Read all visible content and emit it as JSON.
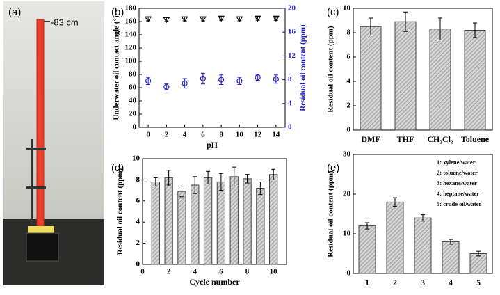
{
  "photo": {
    "panel_label": "(a)",
    "annotation": "-83 cm"
  },
  "chart_data": [
    {
      "type": "scatter",
      "panel_label": "(b)",
      "xlabel": "pH",
      "ylabel": "Underwater oil contact angle (°)",
      "y2label": "Residual oil content (ppm)",
      "y2color": "#1f1fd0",
      "x": [
        0,
        2,
        4,
        6,
        8,
        10,
        12,
        14
      ],
      "xlim": [
        -1,
        15
      ],
      "xticks": [
        0,
        2,
        4,
        6,
        8,
        10,
        12,
        14
      ],
      "ylim": [
        0,
        180
      ],
      "yticks": [
        0,
        20,
        40,
        60,
        80,
        100,
        120,
        140,
        160,
        180
      ],
      "y2lim": [
        0,
        20
      ],
      "y2ticks": [
        0,
        4,
        8,
        12,
        16,
        20
      ],
      "series": [
        {
          "color": "#000000",
          "marker": "triangle-down",
          "values": [
            164,
            163,
            164,
            164,
            165,
            164,
            165,
            165
          ],
          "errors": [
            3,
            3,
            3,
            3,
            3,
            3,
            3,
            3
          ]
        },
        {
          "color": "#1f1fd0",
          "marker": "circle",
          "axis": "y2",
          "values": [
            7.8,
            6.8,
            7.4,
            8.2,
            8.0,
            7.8,
            8.4,
            8.1
          ],
          "errors": [
            0.6,
            0.5,
            0.8,
            0.9,
            0.8,
            0.6,
            0.5,
            0.7
          ]
        }
      ]
    },
    {
      "type": "bar",
      "panel_label": "(c)",
      "ylabel": "Residual oil content (ppm)",
      "categories": [
        "DMF",
        "THF",
        "CH₂Cl₂",
        "Toluene"
      ],
      "values": [
        8.5,
        8.9,
        8.3,
        8.2
      ],
      "errors": [
        0.7,
        0.8,
        0.9,
        0.6
      ],
      "ylim": [
        0,
        10
      ],
      "yticks": [
        0,
        2,
        4,
        6,
        8,
        10
      ]
    },
    {
      "type": "bar",
      "panel_label": "(d)",
      "xlabel": "Cycle number",
      "ylabel": "Residual oil content (ppm)",
      "x": [
        1,
        2,
        3,
        4,
        5,
        6,
        7,
        8,
        9,
        10
      ],
      "values": [
        7.8,
        8.2,
        6.9,
        7.5,
        8.2,
        7.8,
        8.3,
        8.1,
        7.2,
        8.5
      ],
      "errors": [
        0.4,
        0.7,
        0.5,
        0.8,
        0.6,
        0.8,
        0.9,
        0.4,
        0.6,
        0.5
      ],
      "xlim": [
        0,
        11
      ],
      "xticks": [
        0,
        2,
        4,
        6,
        8,
        10
      ],
      "ylim": [
        0,
        10
      ],
      "yticks": [
        0,
        2,
        4,
        6,
        8,
        10
      ]
    },
    {
      "type": "bar",
      "panel_label": "(e)",
      "ylabel": "Residual oil content (ppm)",
      "categories": [
        "1",
        "2",
        "3",
        "4",
        "5"
      ],
      "values": [
        12,
        18,
        14,
        8,
        5
      ],
      "errors": [
        0.8,
        1.1,
        0.8,
        0.6,
        0.6
      ],
      "ylim": [
        0,
        30
      ],
      "yticks": [
        0,
        10,
        20,
        30
      ],
      "annotations": [
        "1: xylene/water",
        "2: toluene/water",
        "3: hexane/water",
        "4: heptane/water",
        "5: crude oil/water"
      ]
    }
  ]
}
